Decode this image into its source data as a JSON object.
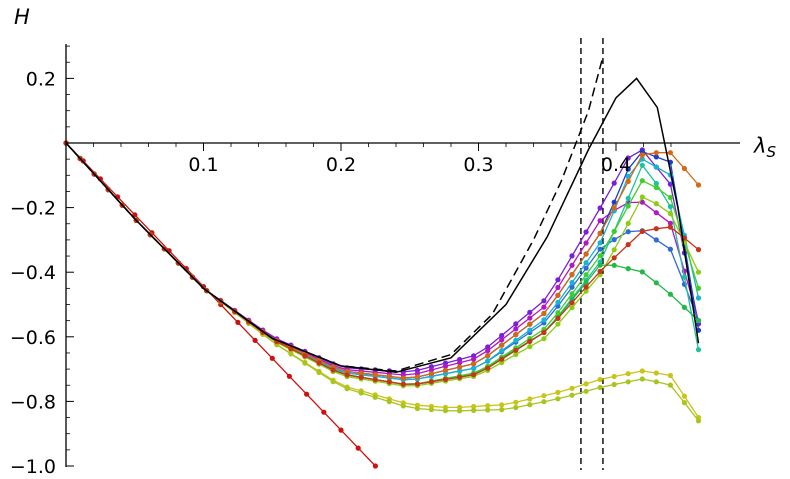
{
  "chart_data": {
    "type": "line",
    "title": "",
    "xlabel": "λ",
    "xlabel_subscript": "S",
    "ylabel": "H",
    "xlim": [
      0,
      0.465
    ],
    "ylim": [
      -1.0,
      0.3
    ],
    "x_ticks": [
      0.1,
      0.2,
      0.3,
      0.4
    ],
    "x_tick_labels": [
      "0.1",
      "0.2",
      "0.3",
      "0.4"
    ],
    "y_ticks": [
      -1.0,
      -0.8,
      -0.6,
      -0.4,
      -0.2,
      0.2
    ],
    "y_tick_labels": [
      "−1.0",
      "−0.8",
      "−0.6",
      "−0.4",
      "−0.2",
      "0.2"
    ],
    "grid": false,
    "legend": "none",
    "reference_lines": [
      {
        "kind": "vertical-dashed",
        "x": 0.3745,
        "color": "#000000"
      },
      {
        "kind": "vertical-dashed",
        "x": 0.3905,
        "color": "#000000"
      }
    ],
    "curves": [
      {
        "style": "solid",
        "color": "#000000",
        "x": [
          0,
          0.05,
          0.1,
          0.15,
          0.2,
          0.24,
          0.28,
          0.32,
          0.35,
          0.38,
          0.4,
          0.415,
          0.43,
          0.445,
          0.46
        ],
        "y": [
          0,
          -0.235,
          -0.45,
          -0.605,
          -0.69,
          -0.71,
          -0.665,
          -0.5,
          -0.29,
          -0.02,
          0.14,
          0.2,
          0.11,
          -0.2,
          -0.62
        ]
      },
      {
        "style": "dashed",
        "color": "#000000",
        "x": [
          0,
          0.05,
          0.1,
          0.15,
          0.2,
          0.24,
          0.28,
          0.31,
          0.34,
          0.36,
          0.38,
          0.39
        ],
        "y": [
          0,
          -0.235,
          -0.45,
          -0.605,
          -0.69,
          -0.706,
          -0.655,
          -0.53,
          -0.3,
          -0.12,
          0.1,
          0.26
        ]
      }
    ],
    "series": [
      {
        "color": "#cc1111",
        "x_start": 0,
        "x_end": 0.225,
        "n": 19,
        "anchors_x": [
          0,
          0.225
        ],
        "anchors_y": [
          0,
          -1.0
        ]
      },
      {
        "color": "#7a1fd6",
        "x_start": 0,
        "x_end": 0.46,
        "n": 46,
        "anchors_x": [
          0,
          0.05,
          0.1,
          0.15,
          0.2,
          0.25,
          0.3,
          0.35,
          0.39,
          0.415,
          0.44,
          0.46
        ],
        "anchors_y": [
          0,
          -0.235,
          -0.45,
          -0.6,
          -0.695,
          -0.71,
          -0.655,
          -0.48,
          -0.19,
          0.0,
          -0.13,
          -0.56
        ]
      },
      {
        "color": "#b017c8",
        "x_start": 0,
        "x_end": 0.46,
        "n": 46,
        "anchors_x": [
          0,
          0.05,
          0.1,
          0.15,
          0.2,
          0.25,
          0.3,
          0.35,
          0.39,
          0.415,
          0.44,
          0.46
        ],
        "anchors_y": [
          0,
          -0.235,
          -0.45,
          -0.603,
          -0.7,
          -0.72,
          -0.665,
          -0.5,
          -0.23,
          -0.17,
          -0.25,
          -0.55
        ]
      },
      {
        "color": "#1a3fd0",
        "x_start": 0,
        "x_end": 0.46,
        "n": 46,
        "anchors_x": [
          0,
          0.05,
          0.1,
          0.15,
          0.2,
          0.25,
          0.3,
          0.35,
          0.39,
          0.415,
          0.44,
          0.46
        ],
        "anchors_y": [
          0,
          -0.235,
          -0.45,
          -0.605,
          -0.705,
          -0.73,
          -0.68,
          -0.52,
          -0.27,
          -0.02,
          -0.06,
          -0.58
        ]
      },
      {
        "color": "#2f6ad8",
        "x_start": 0,
        "x_end": 0.46,
        "n": 46,
        "anchors_x": [
          0,
          0.05,
          0.1,
          0.15,
          0.2,
          0.25,
          0.3,
          0.35,
          0.39,
          0.415,
          0.44,
          0.46
        ],
        "anchors_y": [
          0,
          -0.235,
          -0.45,
          -0.607,
          -0.71,
          -0.735,
          -0.695,
          -0.55,
          -0.32,
          -0.26,
          -0.33,
          -0.55
        ]
      },
      {
        "color": "#19b3d6",
        "x_start": 0,
        "x_end": 0.46,
        "n": 46,
        "anchors_x": [
          0,
          0.05,
          0.1,
          0.15,
          0.2,
          0.25,
          0.3,
          0.35,
          0.39,
          0.415,
          0.44,
          0.46
        ],
        "anchors_y": [
          0,
          -0.235,
          -0.45,
          -0.607,
          -0.71,
          -0.735,
          -0.695,
          -0.54,
          -0.3,
          -0.04,
          -0.1,
          -0.48
        ]
      },
      {
        "color": "#1fc2a0",
        "x_start": 0,
        "x_end": 0.46,
        "n": 46,
        "anchors_x": [
          0,
          0.05,
          0.1,
          0.15,
          0.2,
          0.25,
          0.3,
          0.35,
          0.39,
          0.42,
          0.44,
          0.46
        ],
        "anchors_y": [
          0,
          -0.235,
          -0.45,
          -0.608,
          -0.715,
          -0.75,
          -0.715,
          -0.58,
          -0.36,
          -0.06,
          -0.2,
          -0.64
        ]
      },
      {
        "color": "#22b84a",
        "x_start": 0,
        "x_end": 0.46,
        "n": 46,
        "anchors_x": [
          0,
          0.05,
          0.1,
          0.15,
          0.2,
          0.25,
          0.3,
          0.35,
          0.39,
          0.42,
          0.44,
          0.46
        ],
        "anchors_y": [
          0,
          -0.235,
          -0.45,
          -0.608,
          -0.715,
          -0.75,
          -0.71,
          -0.58,
          -0.37,
          -0.4,
          -0.47,
          -0.55
        ]
      },
      {
        "color": "#3fcf2a",
        "x_start": 0,
        "x_end": 0.46,
        "n": 46,
        "anchors_x": [
          0,
          0.05,
          0.1,
          0.15,
          0.2,
          0.25,
          0.3,
          0.35,
          0.39,
          0.42,
          0.44,
          0.46
        ],
        "anchors_y": [
          0,
          -0.235,
          -0.45,
          -0.608,
          -0.715,
          -0.75,
          -0.71,
          -0.57,
          -0.34,
          -0.11,
          -0.17,
          -0.45
        ]
      },
      {
        "color": "#8ccc14",
        "x_start": 0,
        "x_end": 0.46,
        "n": 46,
        "anchors_x": [
          0,
          0.05,
          0.1,
          0.15,
          0.2,
          0.25,
          0.3,
          0.35,
          0.39,
          0.42,
          0.44,
          0.46
        ],
        "anchors_y": [
          0,
          -0.235,
          -0.45,
          -0.61,
          -0.72,
          -0.755,
          -0.72,
          -0.6,
          -0.4,
          -0.16,
          -0.22,
          -0.4
        ]
      },
      {
        "color": "#c9c419",
        "x_start": 0,
        "x_end": 0.46,
        "n": 46,
        "anchors_x": [
          0,
          0.05,
          0.1,
          0.15,
          0.2,
          0.25,
          0.28,
          0.32,
          0.36,
          0.39,
          0.42,
          0.44,
          0.46
        ],
        "anchors_y": [
          0,
          -0.235,
          -0.45,
          -0.615,
          -0.75,
          -0.81,
          -0.82,
          -0.81,
          -0.77,
          -0.73,
          -0.705,
          -0.72,
          -0.85
        ]
      },
      {
        "color": "#a9c41e",
        "x_start": 0,
        "x_end": 0.46,
        "n": 46,
        "anchors_x": [
          0,
          0.05,
          0.1,
          0.15,
          0.2,
          0.25,
          0.28,
          0.32,
          0.36,
          0.39,
          0.42,
          0.44,
          0.46
        ],
        "anchors_y": [
          0,
          -0.235,
          -0.45,
          -0.615,
          -0.755,
          -0.82,
          -0.83,
          -0.825,
          -0.79,
          -0.755,
          -0.73,
          -0.75,
          -0.86
        ]
      },
      {
        "color": "#d56812",
        "x_start": 0,
        "x_end": 0.46,
        "n": 46,
        "anchors_x": [
          0,
          0.05,
          0.1,
          0.15,
          0.2,
          0.25,
          0.3,
          0.35,
          0.39,
          0.42,
          0.44,
          0.46
        ],
        "anchors_y": [
          0,
          -0.235,
          -0.45,
          -0.605,
          -0.705,
          -0.73,
          -0.68,
          -0.52,
          -0.27,
          -0.03,
          -0.03,
          -0.13
        ]
      },
      {
        "color": "#c8341a",
        "x_start": 0,
        "x_end": 0.46,
        "n": 46,
        "anchors_x": [
          0,
          0.05,
          0.1,
          0.15,
          0.2,
          0.25,
          0.3,
          0.35,
          0.39,
          0.42,
          0.44,
          0.46
        ],
        "anchors_y": [
          0,
          -0.235,
          -0.45,
          -0.608,
          -0.715,
          -0.75,
          -0.715,
          -0.58,
          -0.39,
          -0.27,
          -0.26,
          -0.33
        ]
      }
    ]
  }
}
